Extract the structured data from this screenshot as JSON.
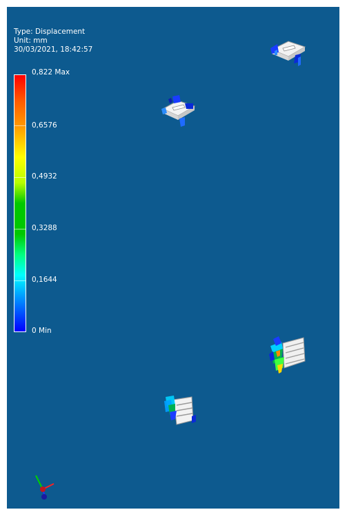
{
  "info": {
    "type_line": "Type: Displacement",
    "unit_line": "Unit: mm",
    "timestamp": "30/03/2021, 18:42:57"
  },
  "legend": {
    "max_label": "0,822 Max",
    "ticks": [
      "0,6576",
      "0,4932",
      "0,3288",
      "0,1644"
    ],
    "min_label": "0 Min"
  },
  "colors": {
    "background": "#0d5a8f",
    "max": "#ff0000",
    "min": "#0000ff"
  },
  "icons": [
    "part-clip-top-right",
    "part-clip-upper-center",
    "part-bracket-right",
    "part-bracket-bottom",
    "axis-triad-icon"
  ]
}
